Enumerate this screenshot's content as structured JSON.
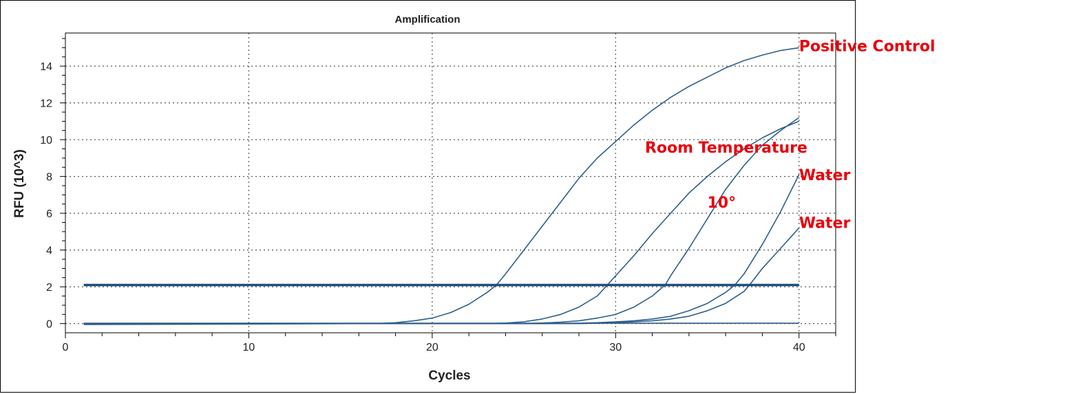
{
  "chart_data": {
    "type": "line",
    "title": "Amplification",
    "xlabel": "Cycles",
    "ylabel": "RFU (10^3)",
    "xlim": [
      0,
      42
    ],
    "ylim": [
      -0.5,
      15.8
    ],
    "xticks": [
      0,
      10,
      20,
      30,
      40
    ],
    "yticks": [
      0,
      2,
      4,
      6,
      8,
      10,
      12,
      14
    ],
    "grid": true,
    "line_color": "#2d5d8a",
    "threshold_color": "#1f4e79",
    "annotation_color": "#e8000b",
    "threshold": {
      "y": 2.1,
      "x": [
        1,
        40
      ]
    },
    "series": [
      {
        "x": [
          1,
          17,
          18,
          19,
          20,
          21,
          22,
          23,
          23.5,
          24,
          25,
          26,
          27,
          28,
          29,
          30,
          31,
          32,
          33,
          34,
          35,
          36,
          37,
          38,
          39,
          40
        ],
        "y": [
          -0.05,
          0,
          0.05,
          0.15,
          0.3,
          0.6,
          1.05,
          1.7,
          2.1,
          2.7,
          4.0,
          5.3,
          6.6,
          7.9,
          9.0,
          9.9,
          10.8,
          11.6,
          12.3,
          12.9,
          13.4,
          13.9,
          14.3,
          14.6,
          14.85,
          15.0
        ]
      },
      {
        "x": [
          1,
          23,
          24,
          25,
          26,
          27,
          28,
          29,
          29.5,
          30,
          31,
          32,
          33,
          34,
          35,
          36,
          37,
          38,
          39,
          40
        ],
        "y": [
          0,
          0,
          0.03,
          0.1,
          0.25,
          0.5,
          0.9,
          1.5,
          2.05,
          2.6,
          3.7,
          4.9,
          6.0,
          7.1,
          8.0,
          8.8,
          9.5,
          10.1,
          10.6,
          11.0
        ]
      },
      {
        "x": [
          1,
          25,
          26,
          27,
          28,
          29,
          30,
          31,
          32,
          32.7,
          33,
          34,
          35,
          36,
          37,
          38,
          39,
          40
        ],
        "y": [
          0,
          0,
          0.03,
          0.08,
          0.15,
          0.3,
          0.5,
          0.9,
          1.5,
          2.1,
          2.6,
          4.1,
          5.7,
          7.3,
          8.6,
          9.7,
          10.5,
          11.2
        ]
      },
      {
        "x": [
          1,
          27,
          28,
          29,
          30,
          31,
          32,
          33,
          34,
          35,
          36,
          36.5,
          37,
          38,
          39,
          40
        ],
        "y": [
          0,
          0,
          0.02,
          0.05,
          0.1,
          0.15,
          0.25,
          0.4,
          0.7,
          1.1,
          1.7,
          2.1,
          2.7,
          4.3,
          6.1,
          8.1
        ]
      },
      {
        "x": [
          1,
          28,
          29,
          30,
          31,
          32,
          33,
          34,
          35,
          36,
          37,
          37.3,
          38,
          39,
          40
        ],
        "y": [
          0,
          0,
          0.02,
          0.05,
          0.1,
          0.15,
          0.25,
          0.4,
          0.7,
          1.1,
          1.75,
          2.1,
          3.0,
          4.1,
          5.2
        ]
      },
      {
        "x": [
          1,
          40
        ],
        "y": [
          0.02,
          0.02
        ]
      }
    ],
    "annotations": [
      {
        "text": "Positive Control",
        "x": 40,
        "y": 15.1
      },
      {
        "text": "Room Temperature",
        "x": 31.6,
        "y": 9.6
      },
      {
        "text": "Water",
        "x": 40,
        "y": 8.1
      },
      {
        "text": "10°",
        "x": 35,
        "y": 6.6
      },
      {
        "text": "Water",
        "x": 40,
        "y": 5.5
      }
    ]
  }
}
